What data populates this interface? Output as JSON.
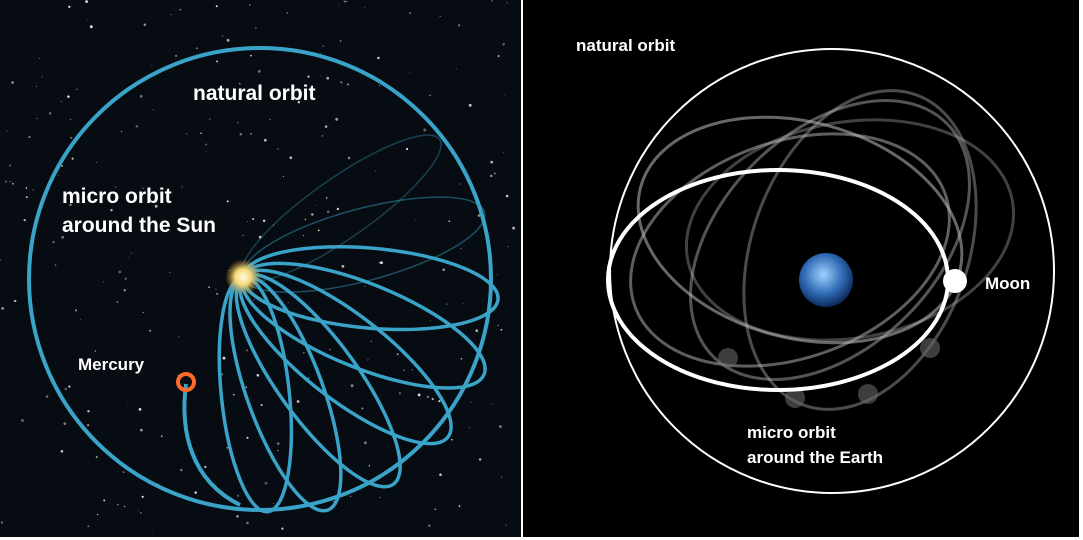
{
  "left_panel": {
    "title": "natural orbit",
    "micro_orbit": [
      "micro orbit",
      "around the Sun"
    ],
    "planet": "Mercury"
  },
  "right_panel": {
    "title": "natural orbit",
    "moon": "Moon",
    "micro_orbit": [
      "micro orbit",
      "around the Earth"
    ]
  }
}
